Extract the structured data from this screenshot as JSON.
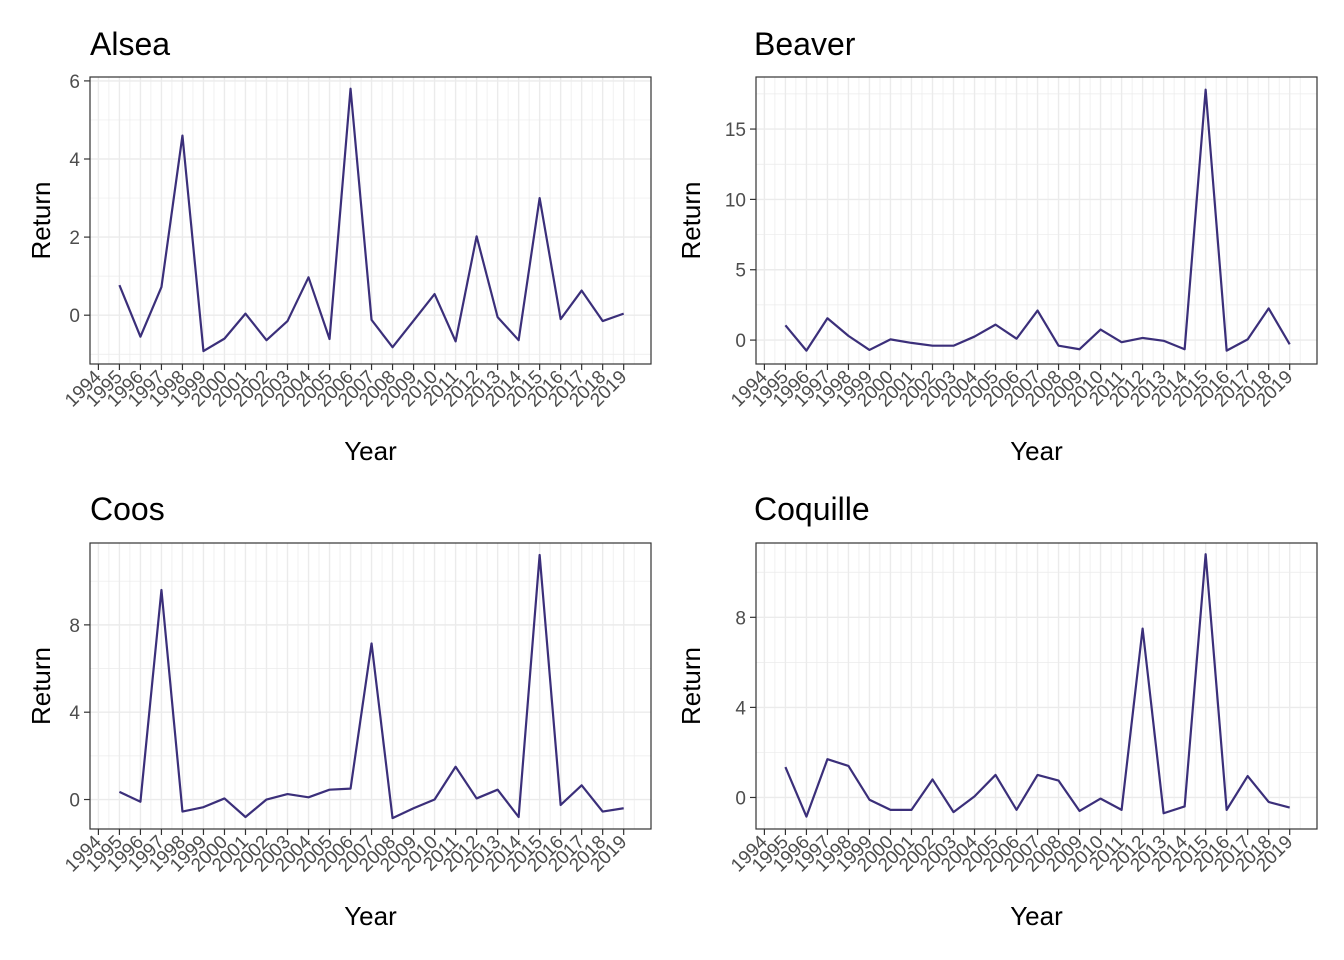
{
  "line_color": "#3b2f7a",
  "chart_data": [
    {
      "type": "line",
      "title": "Alsea",
      "xlabel": "Year",
      "ylabel": "Return",
      "x": [
        1995,
        1996,
        1997,
        1998,
        1999,
        2000,
        2001,
        2002,
        2003,
        2004,
        2005,
        2006,
        2007,
        2008,
        2009,
        2010,
        2011,
        2012,
        2013,
        2014,
        2015,
        2016,
        2017,
        2018,
        2019
      ],
      "x_ticks": [
        "1994",
        "1995",
        "1996",
        "1997",
        "1998",
        "1999",
        "2000",
        "2001",
        "2002",
        "2003",
        "2004",
        "2005",
        "2006",
        "2007",
        "2008",
        "2009",
        "2010",
        "2011",
        "2012",
        "2013",
        "2014",
        "2015",
        "2016",
        "2017",
        "2018",
        "2019"
      ],
      "xlim": [
        1993.6,
        2020.3
      ],
      "series": [
        {
          "values": [
            0.77,
            -0.55,
            0.72,
            4.6,
            -0.92,
            -0.6,
            0.04,
            -0.64,
            -0.15,
            0.97,
            -0.61,
            5.8,
            -0.12,
            -0.82,
            -0.14,
            0.54,
            -0.67,
            2.02,
            -0.05,
            -0.64,
            3.0,
            -0.1,
            0.63,
            -0.15,
            0.04
          ]
        }
      ],
      "y_ticks": [
        0,
        2,
        4,
        6
      ],
      "ylim": [
        -1.25,
        6.1
      ],
      "grid": true
    },
    {
      "type": "line",
      "title": "Beaver",
      "xlabel": "Year",
      "ylabel": "Return",
      "x": [
        1995,
        1996,
        1997,
        1998,
        1999,
        2000,
        2001,
        2002,
        2003,
        2004,
        2005,
        2006,
        2007,
        2008,
        2009,
        2010,
        2011,
        2012,
        2013,
        2014,
        2015,
        2016,
        2017,
        2018,
        2019
      ],
      "x_ticks": [
        "1994",
        "1995",
        "1996",
        "1997",
        "1998",
        "1999",
        "2000",
        "2001",
        "2002",
        "2003",
        "2004",
        "2005",
        "2006",
        "2007",
        "2008",
        "2009",
        "2010",
        "2011",
        "2012",
        "2013",
        "2014",
        "2015",
        "2016",
        "2017",
        "2018",
        "2019"
      ],
      "xlim": [
        1993.6,
        2020.3
      ],
      "series": [
        {
          "values": [
            1.05,
            -0.75,
            1.55,
            0.3,
            -0.7,
            0.05,
            -0.2,
            -0.4,
            -0.4,
            0.25,
            1.1,
            0.1,
            2.1,
            -0.4,
            -0.65,
            0.75,
            -0.15,
            0.15,
            -0.05,
            -0.65,
            17.8,
            -0.75,
            0.05,
            2.25,
            -0.3
          ]
        }
      ],
      "y_ticks": [
        0,
        5,
        10,
        15
      ],
      "ylim": [
        -1.7,
        18.7
      ],
      "grid": true
    },
    {
      "type": "line",
      "title": "Coos",
      "xlabel": "Year",
      "ylabel": "Return",
      "x": [
        1995,
        1996,
        1997,
        1998,
        1999,
        2000,
        2001,
        2002,
        2003,
        2004,
        2005,
        2006,
        2007,
        2008,
        2009,
        2010,
        2011,
        2012,
        2013,
        2014,
        2015,
        2016,
        2017,
        2018,
        2019
      ],
      "x_ticks": [
        "1994",
        "1995",
        "1996",
        "1997",
        "1998",
        "1999",
        "2000",
        "2001",
        "2002",
        "2003",
        "2004",
        "2005",
        "2006",
        "2007",
        "2008",
        "2009",
        "2010",
        "2011",
        "2012",
        "2013",
        "2014",
        "2015",
        "2016",
        "2017",
        "2018",
        "2019"
      ],
      "xlim": [
        1993.6,
        2020.3
      ],
      "series": [
        {
          "values": [
            0.35,
            -0.1,
            9.6,
            -0.55,
            -0.35,
            0.05,
            -0.8,
            0.0,
            0.25,
            0.1,
            0.45,
            0.5,
            7.15,
            -0.85,
            -0.4,
            0.0,
            1.5,
            0.05,
            0.45,
            -0.8,
            11.2,
            -0.25,
            0.65,
            -0.55,
            -0.4
          ]
        }
      ],
      "y_ticks": [
        0,
        4,
        8
      ],
      "ylim": [
        -1.35,
        11.75
      ],
      "grid": true
    },
    {
      "type": "line",
      "title": "Coquille",
      "xlabel": "Year",
      "ylabel": "Return",
      "x": [
        1995,
        1996,
        1997,
        1998,
        1999,
        2000,
        2001,
        2002,
        2003,
        2004,
        2005,
        2006,
        2007,
        2008,
        2009,
        2010,
        2011,
        2012,
        2013,
        2014,
        2015,
        2016,
        2017,
        2018,
        2019
      ],
      "x_ticks": [
        "1994",
        "1995",
        "1996",
        "1997",
        "1998",
        "1999",
        "2000",
        "2001",
        "2002",
        "2003",
        "2004",
        "2005",
        "2006",
        "2007",
        "2008",
        "2009",
        "2010",
        "2011",
        "2012",
        "2013",
        "2014",
        "2015",
        "2016",
        "2017",
        "2018",
        "2019"
      ],
      "xlim": [
        1993.6,
        2020.3
      ],
      "series": [
        {
          "values": [
            1.35,
            -0.85,
            1.7,
            1.4,
            -0.1,
            -0.55,
            -0.55,
            0.8,
            -0.65,
            0.05,
            1.0,
            -0.55,
            1.0,
            0.75,
            -0.6,
            -0.05,
            -0.55,
            7.5,
            -0.7,
            -0.4,
            10.8,
            -0.55,
            0.95,
            -0.2,
            -0.45
          ]
        }
      ],
      "y_ticks": [
        0,
        4,
        8
      ],
      "ylim": [
        -1.4,
        11.3
      ],
      "grid": true
    }
  ]
}
